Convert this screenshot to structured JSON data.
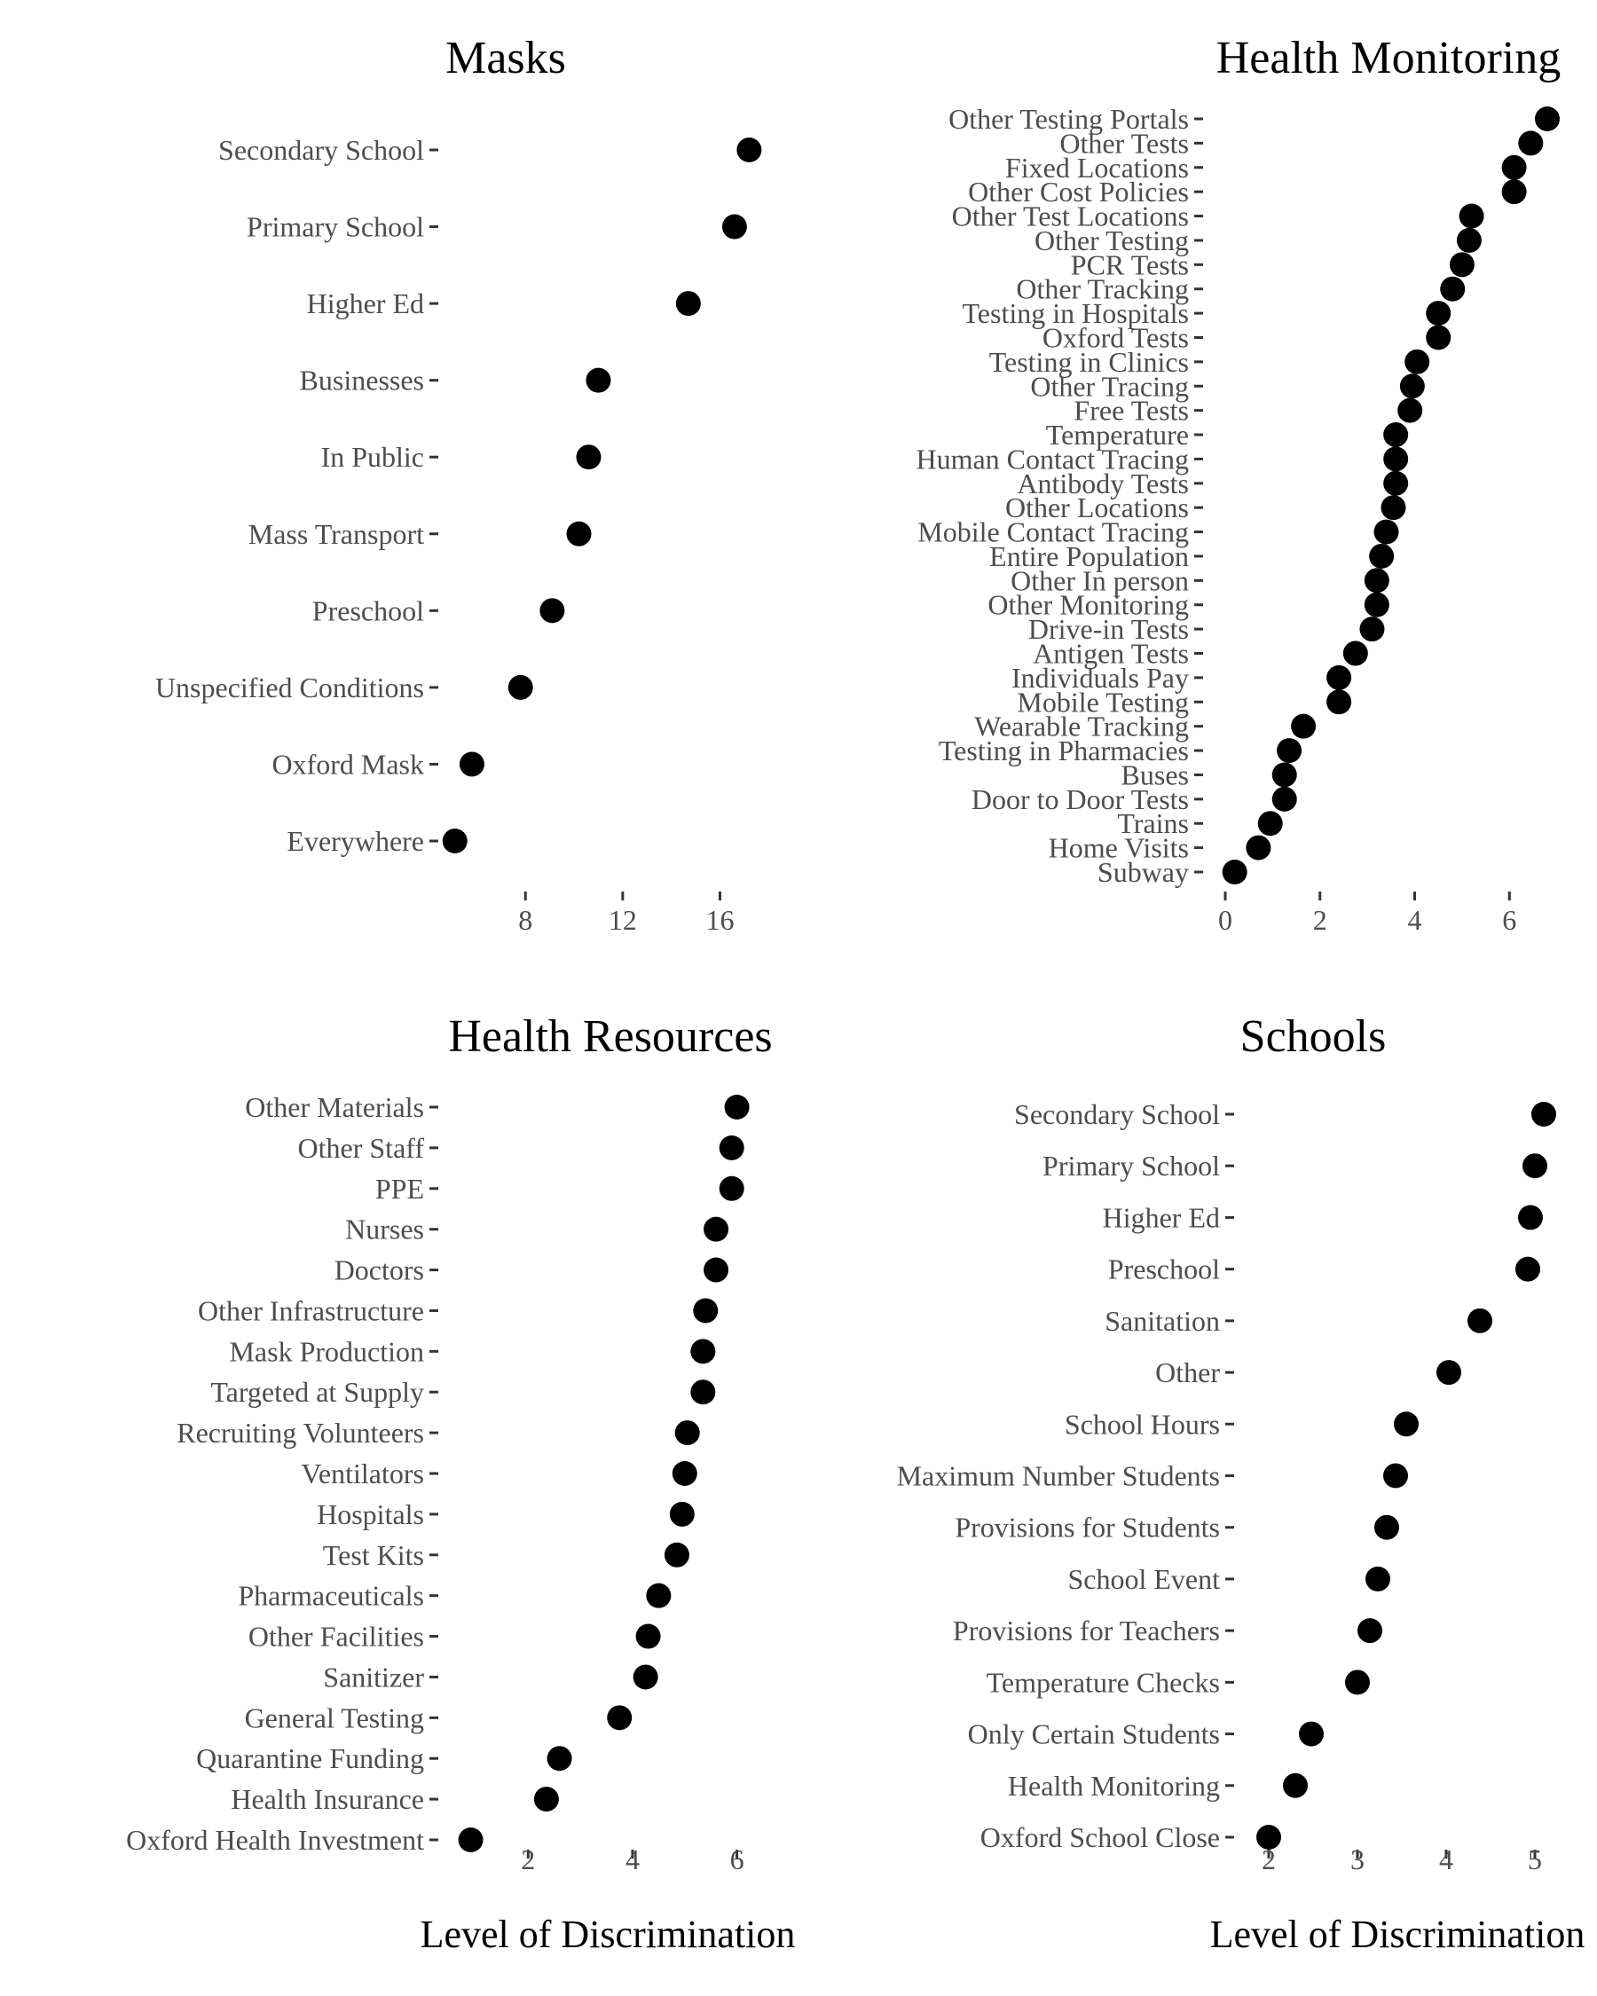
{
  "chart_data": [
    {
      "type": "scatter",
      "title": "Masks",
      "xlabel": "",
      "xlim": [
        5.0,
        18.5
      ],
      "xticks": [
        8,
        12,
        16
      ],
      "categories": [
        "Secondary School",
        "Primary School",
        "Higher Ed",
        "Businesses",
        "In Public",
        "Mass Transport",
        "Preschool",
        "Unspecified Conditions",
        "Oxford Mask",
        "Everywhere"
      ],
      "values": [
        17.2,
        16.6,
        14.7,
        11.0,
        10.6,
        10.2,
        9.1,
        7.8,
        5.8,
        5.1
      ]
    },
    {
      "type": "scatter",
      "title": "Health Monitoring",
      "xlabel": "",
      "xlim": [
        -0.3,
        7.1
      ],
      "xticks": [
        0,
        2,
        4,
        6
      ],
      "categories": [
        "Other Testing Portals",
        "Other Tests",
        "Fixed Locations",
        "Other Cost Policies",
        "Other Test Locations",
        "Other Testing",
        "PCR Tests",
        "Other Tracking",
        "Testing in Hospitals",
        "Oxford Tests",
        "Testing in Clinics",
        "Other Tracing",
        "Free Tests",
        "Temperature",
        "Human Contact Tracing",
        "Antibody Tests",
        "Other Locations",
        "Mobile Contact Tracing",
        "Entire Population",
        "Other In person",
        "Other Monitoring",
        "Drive-in Tests",
        "Antigen Tests",
        "Individuals Pay",
        "Mobile Testing",
        "Wearable Tracking",
        "Testing in Pharmacies",
        "Buses",
        "Door to Door Tests",
        "Trains",
        "Home Visits",
        "Subway"
      ],
      "values": [
        6.8,
        6.45,
        6.1,
        6.1,
        5.2,
        5.15,
        5.0,
        4.8,
        4.5,
        4.5,
        4.05,
        3.95,
        3.9,
        3.6,
        3.6,
        3.6,
        3.55,
        3.4,
        3.3,
        3.2,
        3.2,
        3.1,
        2.75,
        2.4,
        2.4,
        1.65,
        1.35,
        1.25,
        1.25,
        0.95,
        0.7,
        0.2
      ]
    },
    {
      "type": "scatter",
      "title": "Health Resources",
      "xlabel": "Level of Discrimination",
      "xlim": [
        0.55,
        6.5
      ],
      "xticks": [
        2,
        4,
        6
      ],
      "categories": [
        "Other Materials",
        "Other Staff",
        "PPE",
        "Nurses",
        "Doctors",
        "Other Infrastructure",
        "Mask Production",
        "Targeted at Supply",
        "Recruiting Volunteers",
        "Ventilators",
        "Hospitals",
        "Test Kits",
        "Pharmaceuticals",
        "Other Facilities",
        "Sanitizer",
        "General Testing",
        "Quarantine Funding",
        "Health Insurance",
        "Oxford Health Investment"
      ],
      "values": [
        6.0,
        5.9,
        5.9,
        5.6,
        5.6,
        5.4,
        5.35,
        5.35,
        5.05,
        5.0,
        4.95,
        4.85,
        4.5,
        4.3,
        4.25,
        3.75,
        2.6,
        2.35,
        0.9
      ]
    },
    {
      "type": "scatter",
      "title": "Schools",
      "xlabel": "Level of Discrimination",
      "xlim": [
        1.6,
        5.3
      ],
      "xticks": [
        2,
        3,
        4,
        5
      ],
      "categories": [
        "Secondary School",
        "Primary School",
        "Higher Ed",
        "Preschool",
        "Sanitation",
        "Other",
        "School Hours",
        "Maximum Number Students",
        "Provisions for Students",
        "School Event",
        "Provisions for Teachers",
        "Temperature Checks",
        "Only Certain Students",
        "Health Monitoring",
        "Oxford School Close"
      ],
      "values": [
        5.1,
        5.0,
        4.95,
        4.92,
        4.38,
        4.03,
        3.55,
        3.43,
        3.33,
        3.23,
        3.14,
        3.0,
        2.48,
        2.3,
        2.0
      ]
    }
  ]
}
